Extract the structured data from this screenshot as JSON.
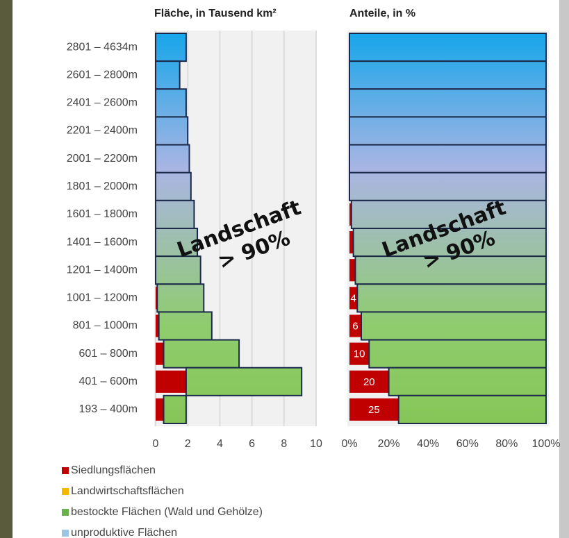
{
  "chart_data": [
    {
      "type": "bar",
      "orientation": "horizontal",
      "title": "Fläche, in Tausend km²",
      "categories": [
        "2801 – 4634m",
        "2601 – 2800m",
        "2401 – 2600m",
        "2201 – 2400m",
        "2001 – 2200m",
        "1801 – 2000m",
        "1601 – 1800m",
        "1401 – 1600m",
        "1201 – 1400m",
        "1001 – 1200m",
        "801 – 1000m",
        "601 – 800m",
        "401 – 600m",
        "193 – 400m"
      ],
      "series": [
        {
          "name": "Siedlungsflächen",
          "color": "#c00000",
          "values": [
            0,
            0,
            0,
            0,
            0,
            0,
            0,
            0,
            0,
            0.1,
            0.2,
            0.5,
            1.9,
            0.5
          ]
        },
        {
          "color": "gradient",
          "values": [
            1.9,
            1.5,
            1.9,
            2.0,
            2.1,
            2.2,
            2.4,
            2.6,
            2.8,
            2.9,
            3.3,
            4.7,
            7.2,
            1.4
          ]
        }
      ],
      "xlim": [
        0,
        10
      ],
      "xticks": [
        0,
        2,
        4,
        6,
        8,
        10
      ],
      "grid": true,
      "annotation": [
        "Landschaft",
        "> 90%"
      ]
    },
    {
      "type": "bar",
      "orientation": "horizontal",
      "title": "Anteile, in %",
      "series": [
        {
          "name": "Siedlungsflächen",
          "color": "#c00000",
          "values": [
            0,
            0,
            0,
            0,
            0,
            0,
            1,
            2,
            3,
            4,
            6,
            10,
            20,
            25
          ]
        },
        {
          "color": "gradient",
          "values": [
            100,
            100,
            100,
            100,
            100,
            100,
            99,
            98,
            97,
            96,
            94,
            90,
            80,
            75
          ]
        }
      ],
      "xlim": [
        0,
        100
      ],
      "xticks": [
        {
          "value": 0,
          "label": "0%"
        },
        {
          "value": 20,
          "label": "20%"
        },
        {
          "value": 40,
          "label": "40%"
        },
        {
          "value": 60,
          "label": "60%"
        },
        {
          "value": 80,
          "label": "80%"
        },
        {
          "value": 100,
          "label": "100%"
        }
      ],
      "grid": false,
      "annotation": [
        "Landschaft",
        "> 90%"
      ]
    }
  ],
  "legend": [
    {
      "label": "Siedlungsflächen",
      "color": "#c00000"
    },
    {
      "label": "Landwirtschaftsflächen",
      "color": "#f5b800"
    },
    {
      "label": "bestockte Flächen (Wald und Gehölze)",
      "color": "#6ab04c"
    },
    {
      "label": "unproduktive Flächen",
      "color": "#9dc3e6"
    }
  ]
}
